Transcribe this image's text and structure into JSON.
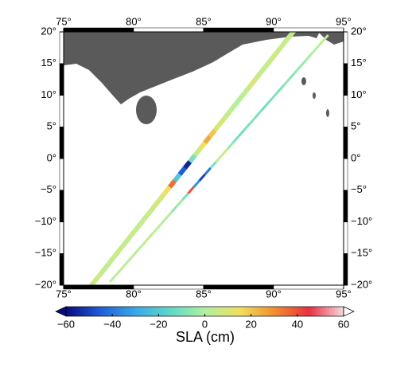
{
  "chart_data": {
    "type": "map",
    "xlim": [
      75,
      95
    ],
    "ylim": [
      -20,
      20
    ],
    "xticks": [
      {
        "value": 75,
        "label": "75°"
      },
      {
        "value": 80,
        "label": "80°"
      },
      {
        "value": 85,
        "label": "85°"
      },
      {
        "value": 90,
        "label": "90°"
      },
      {
        "value": 95,
        "label": "95°"
      }
    ],
    "yticks": [
      {
        "value": -20,
        "label": "−20°"
      },
      {
        "value": -15,
        "label": "−15°"
      },
      {
        "value": -10,
        "label": "−10°"
      },
      {
        "value": -5,
        "label": "−5°"
      },
      {
        "value": 0,
        "label": "0°"
      },
      {
        "value": 5,
        "label": "5°"
      },
      {
        "value": 10,
        "label": "10°"
      },
      {
        "value": 15,
        "label": "15°"
      },
      {
        "value": 20,
        "label": "20°"
      }
    ],
    "series": [
      {
        "lon": [
          77,
          77.36,
          77.72,
          78.08,
          78.44,
          78.8,
          79.16,
          79.52,
          79.88,
          80.24,
          80.6,
          80.96,
          81.32,
          81.68,
          82.04,
          82.4,
          82.76,
          83.12,
          83.48,
          83.84,
          84.2,
          84.56,
          84.92,
          85.28,
          85.64,
          86,
          86.36,
          86.72,
          87.08,
          87.44,
          87.8,
          88.16,
          88.52,
          88.88,
          89.24,
          89.6,
          89.96,
          90.32,
          90.68,
          91.04,
          91.4
        ],
        "lat": [
          -20,
          -19,
          -18,
          -17,
          -16,
          -15,
          -14,
          -13,
          -12,
          -11,
          -10,
          -9,
          -8,
          -7,
          -6,
          -5,
          -4,
          -3,
          -2,
          -1,
          0,
          1,
          2,
          3,
          4,
          5,
          6,
          7,
          8,
          9,
          10,
          11,
          12,
          13,
          14,
          15,
          16,
          17,
          18,
          19,
          20
        ],
        "sla": [
          5,
          6,
          5,
          4,
          5,
          6,
          5,
          4,
          6,
          5,
          4,
          5,
          6,
          8,
          10,
          15,
          35,
          -20,
          -45,
          -55,
          -10,
          5,
          15,
          25,
          20,
          10,
          8,
          5,
          3,
          0,
          2,
          5,
          10,
          6,
          4,
          5,
          6,
          7,
          5,
          4,
          5
        ]
      },
      {
        "lon": [
          78.5,
          78.9,
          79.3,
          79.7,
          80.1,
          80.5,
          80.9,
          81.3,
          81.7,
          82.1,
          82.5,
          82.9,
          83.3,
          83.7,
          84.1,
          84.5,
          84.9,
          85.3,
          85.7,
          86.1,
          86.5,
          86.9,
          87.3,
          87.7,
          88.1,
          88.5,
          88.9,
          89.3,
          89.7,
          90.1,
          90.5,
          90.9,
          91.3,
          91.7,
          92.1,
          92.5,
          92.9,
          93.3,
          93.7
        ],
        "lat": [
          -19,
          -18,
          -17,
          -16,
          -15,
          -14,
          -13,
          -12,
          -11,
          -10,
          -9,
          -8,
          -7,
          -6,
          -5,
          -4,
          -3,
          -2,
          -1,
          0,
          1,
          2,
          3,
          4,
          5,
          6,
          7,
          8,
          9,
          10,
          11,
          12,
          13,
          14,
          15,
          16,
          17,
          18,
          19
        ],
        "sla": [
          2,
          3,
          4,
          2,
          3,
          2,
          4,
          3,
          2,
          3,
          0,
          -5,
          -3,
          -10,
          40,
          -35,
          -50,
          -40,
          -10,
          5,
          10,
          -5,
          -10,
          -12,
          -10,
          -8,
          -10,
          -12,
          -10,
          -8,
          -10,
          -6,
          -8,
          -5,
          -4,
          -2,
          0,
          2,
          3
        ]
      }
    ],
    "colorbar": {
      "label": "SLA (cm)",
      "lim": [
        -60,
        60
      ],
      "ticks": [
        {
          "value": -60,
          "label": "−60"
        },
        {
          "value": -40,
          "label": "−40"
        },
        {
          "value": -20,
          "label": "−20"
        },
        0,
        20,
        40,
        60
      ],
      "colors": [
        "#0a0a80",
        "#1f5fd8",
        "#3aa8e8",
        "#5fd8c8",
        "#b0f0a0",
        "#f0e060",
        "#f09030",
        "#e83040",
        "#f8d8e0"
      ]
    }
  }
}
